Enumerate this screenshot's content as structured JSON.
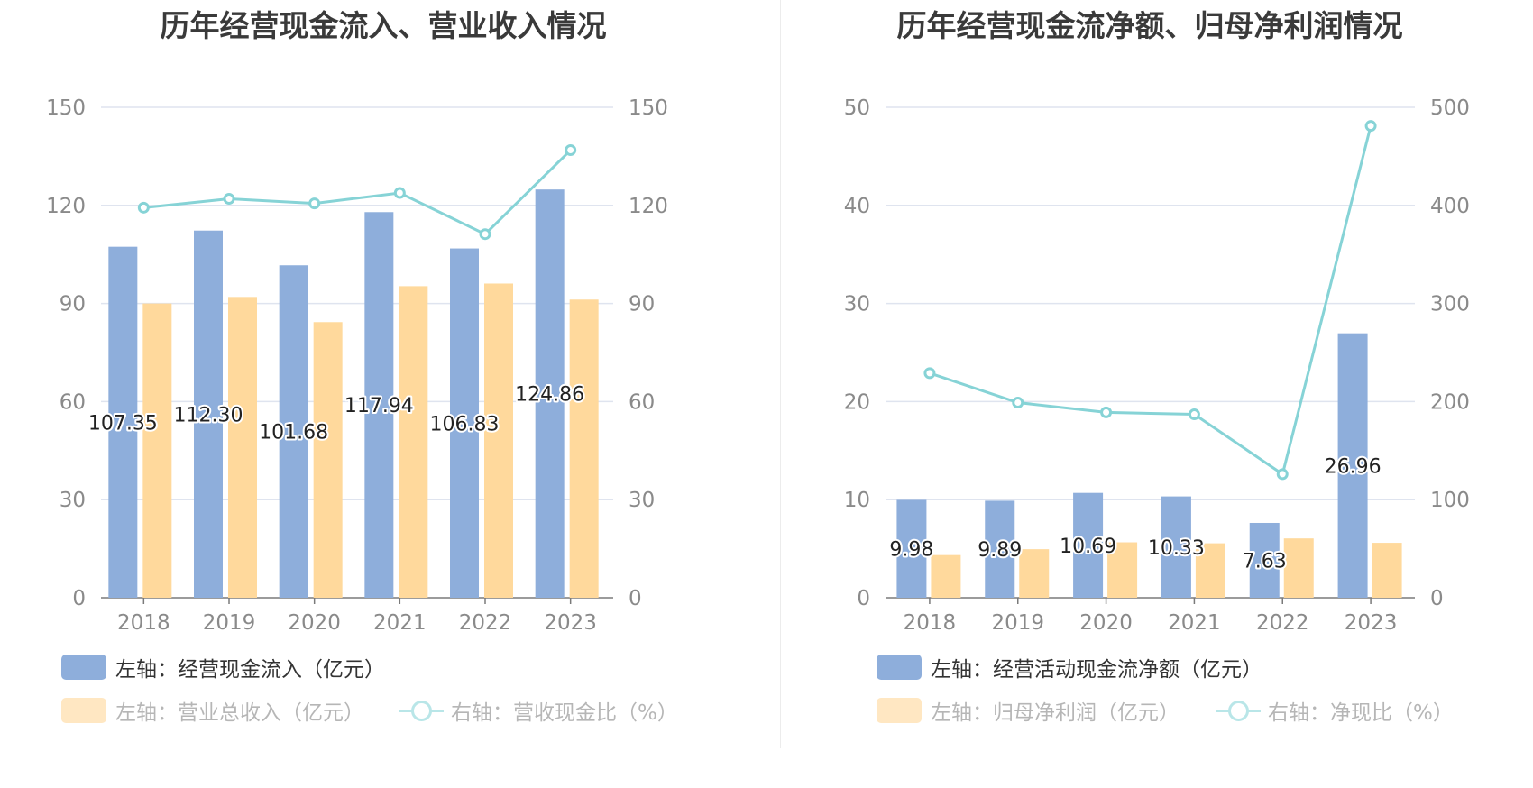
{
  "colors": {
    "bar1": "#8eaedb",
    "bar2": "#ffd99c",
    "line": "#86d3d6",
    "grid": "#dfe4ef",
    "axis": "#7a7a7a",
    "legend_active": "#333333",
    "legend_dim": "#b6b6b6"
  },
  "chart_data": [
    {
      "type": "bar",
      "title": "历年经营现金流入、营业收入情况",
      "categories": [
        "2018",
        "2019",
        "2020",
        "2021",
        "2022",
        "2023"
      ],
      "left_axis": {
        "ylim": [
          0,
          150
        ],
        "ticks": [
          "0",
          "30",
          "60",
          "90",
          "120",
          "150"
        ]
      },
      "right_axis": {
        "ylim": [
          0,
          150
        ],
        "ticks": [
          "0",
          "30",
          "60",
          "90",
          "120",
          "150"
        ]
      },
      "series": [
        {
          "name": "左轴：经营现金流入（亿元）",
          "kind": "bar",
          "axis": "left",
          "values": [
            107.35,
            112.3,
            101.68,
            117.94,
            106.83,
            124.86
          ],
          "labels": [
            "107.35",
            "112.30",
            "101.68",
            "117.94",
            "106.83",
            "124.86"
          ]
        },
        {
          "name": "左轴：营业总收入（亿元）",
          "kind": "bar",
          "axis": "left",
          "values": [
            90.0,
            92.0,
            84.3,
            95.3,
            96.1,
            91.2
          ]
        },
        {
          "name": "右轴：营收现金比（%）",
          "kind": "line",
          "axis": "right",
          "values": [
            119.3,
            122.0,
            120.6,
            123.8,
            111.2,
            136.9
          ]
        }
      ],
      "grid": true,
      "legend_position": "bottom"
    },
    {
      "type": "bar",
      "title": "历年经营现金流净额、归母净利润情况",
      "categories": [
        "2018",
        "2019",
        "2020",
        "2021",
        "2022",
        "2023"
      ],
      "left_axis": {
        "ylim": [
          0,
          50
        ],
        "ticks": [
          "0",
          "10",
          "20",
          "30",
          "40",
          "50"
        ]
      },
      "right_axis": {
        "ylim": [
          0,
          500
        ],
        "ticks": [
          "0",
          "100",
          "200",
          "300",
          "400",
          "500"
        ]
      },
      "series": [
        {
          "name": "左轴：经营活动现金流净额（亿元）",
          "kind": "bar",
          "axis": "left",
          "values": [
            9.98,
            9.89,
            10.69,
            10.33,
            7.63,
            26.96
          ],
          "labels": [
            "9.98",
            "9.89",
            "10.69",
            "10.33",
            "7.63",
            "26.96"
          ]
        },
        {
          "name": "左轴：归母净利润（亿元）",
          "kind": "bar",
          "axis": "left",
          "values": [
            4.35,
            4.95,
            5.65,
            5.55,
            6.05,
            5.6
          ]
        },
        {
          "name": "右轴：净现比（%）",
          "kind": "line",
          "axis": "right",
          "values": [
            229,
            199,
            189,
            187,
            126,
            481
          ]
        }
      ],
      "grid": true,
      "legend_position": "bottom"
    }
  ]
}
